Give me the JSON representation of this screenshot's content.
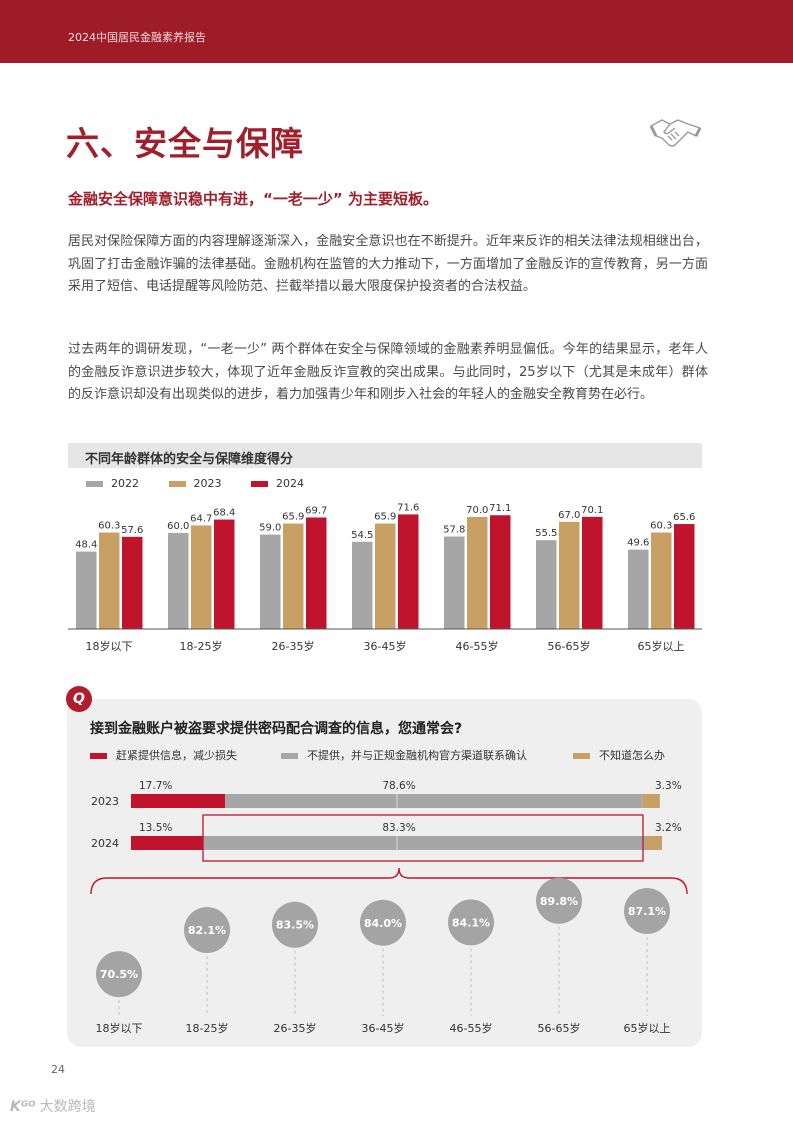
{
  "header": {
    "report_title": "2024中国居民金融素养报告"
  },
  "section_title": "六、安全与保障",
  "section_icon": "handshake-icon",
  "subheading": "金融安全保障意识稳中有进，“一老一少” 为主要短板。",
  "paragraphs": [
    "居民对保险保障方面的内容理解逐渐深入，金融安全意识也在不断提升。近年来反诈的相关法律法规相继出台，巩固了打击金融诈骗的法律基础。金融机构在监管的大力推动下，一方面增加了金融反诈的宣传教育，另一方面采用了短信、电话提醒等风险防范、拦截举措以最大限度保护投资者的合法权益。",
    "过去两年的调研发现，“一老一少” 两个群体在安全与保障领域的金融素养明显偏低。今年的结果显示，老年人的金融反诈意识进步较大，体现了近年金融反诈宣教的突出成果。与此同时，25岁以下（尤其是未成年）群体的反诈意识却没有出现类似的进步，着力加强青少年和刚步入社会的年轻人的金融安全教育势在必行。"
  ],
  "colors": {
    "2022": "#a6a6a7",
    "2023": "#c8a064",
    "2024": "#c0142c",
    "brand": "#9e1c27"
  },
  "chart_data": [
    {
      "type": "bar",
      "title": "不同年龄群体的安全与保障维度得分",
      "categories": [
        "18岁以下",
        "18-25岁",
        "26-35岁",
        "36-45岁",
        "46-55岁",
        "56-65岁",
        "65岁以上"
      ],
      "series": [
        {
          "name": "2022",
          "values": [
            48.4,
            60.0,
            59.0,
            54.5,
            57.8,
            55.5,
            49.6
          ]
        },
        {
          "name": "2023",
          "values": [
            60.3,
            64.7,
            65.9,
            65.9,
            70.0,
            67.0,
            60.3
          ]
        },
        {
          "name": "2024",
          "values": [
            57.6,
            68.4,
            69.7,
            71.6,
            71.1,
            70.1,
            65.6
          ]
        }
      ],
      "ylim": [
        0,
        80
      ]
    },
    {
      "type": "bar",
      "stacked": true,
      "orientation": "horizontal",
      "title": "接到金融账户被盗要求提供密码配合调查的信息，您通常会?",
      "categories": [
        "2023",
        "2024"
      ],
      "series": [
        {
          "name": "赶紧提供信息，减少损失",
          "values": [
            17.7,
            13.5
          ]
        },
        {
          "name": "不提供，并与正规金融机构官方渠道联系确认",
          "values": [
            78.6,
            83.3
          ]
        },
        {
          "name": "不知道怎么办",
          "values": [
            3.3,
            3.2
          ]
        }
      ],
      "labels": [
        [
          "17.7%",
          "78.6%",
          "3.3%"
        ],
        [
          "13.5%",
          "83.3%",
          "3.2%"
        ]
      ]
    },
    {
      "type": "scatter",
      "categories": [
        "18岁以下",
        "18-25岁",
        "26-35岁",
        "36-45岁",
        "46-55岁",
        "56-65岁",
        "65岁以上"
      ],
      "values": [
        70.5,
        82.1,
        83.5,
        84.0,
        84.1,
        89.8,
        87.1
      ],
      "labels": [
        "70.5%",
        "82.1%",
        "83.5%",
        "84.0%",
        "84.1%",
        "89.8%",
        "87.1%"
      ]
    }
  ],
  "question_icon_text": "Q",
  "page_number": "24",
  "watermark": {
    "logo": "Kᴳᴼ",
    "text": "大数跨境"
  }
}
